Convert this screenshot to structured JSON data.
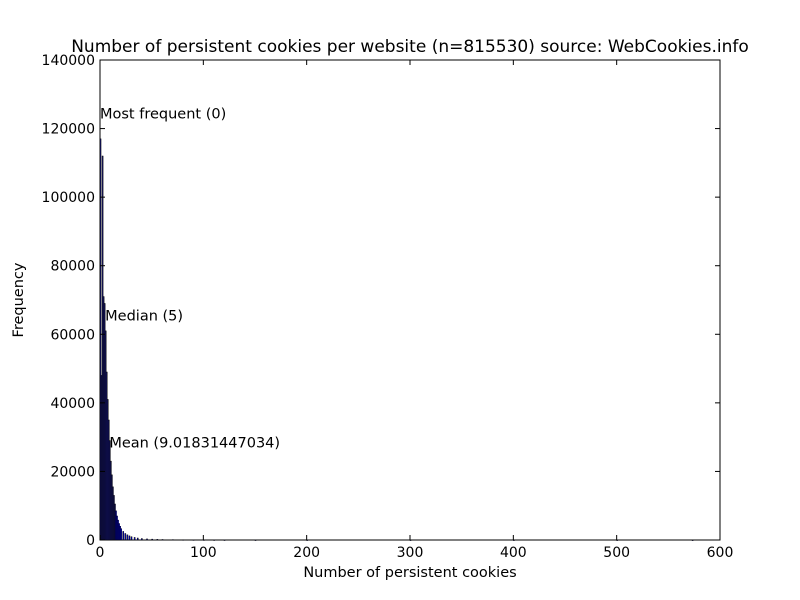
{
  "chart_data": {
    "type": "bar",
    "title": "Number of persistent cookies per website (n=815530) source: WebCookies.info",
    "xlabel": "Number of persistent cookies",
    "ylabel": "Frequency",
    "xlim": [
      0,
      600
    ],
    "ylim": [
      0,
      140000
    ],
    "xticks": [
      "0",
      "100",
      "200",
      "300",
      "400",
      "500",
      "600"
    ],
    "yticks": [
      "0",
      "20000",
      "40000",
      "60000",
      "80000",
      "100000",
      "120000",
      "140000"
    ],
    "grid": false,
    "bin_width": 1,
    "bins": {
      "x": [
        0,
        1,
        2,
        3,
        4,
        5,
        6,
        7,
        8,
        9,
        10,
        11,
        12,
        13,
        14,
        15,
        16,
        17,
        18,
        19,
        20,
        22,
        24,
        26,
        28,
        30,
        33,
        36,
        40,
        45,
        50,
        55,
        60,
        70,
        80,
        90,
        100,
        110,
        120,
        150,
        200,
        300,
        400,
        500,
        573
      ],
      "values": [
        117000,
        48000,
        112000,
        71000,
        69000,
        61000,
        49000,
        41000,
        35000,
        29000,
        23000,
        19000,
        15500,
        13000,
        10500,
        8500,
        7000,
        5800,
        4800,
        4000,
        3300,
        2500,
        1900,
        1500,
        1200,
        950,
        750,
        580,
        430,
        320,
        250,
        190,
        150,
        110,
        80,
        60,
        45,
        35,
        25,
        15,
        10,
        6,
        4,
        3,
        2
      ]
    },
    "markers": [
      {
        "label": "Most frequent (0)",
        "x": 0,
        "y": 123000
      },
      {
        "label": "Median (5)",
        "x": 5,
        "y": 64000
      },
      {
        "label": "Mean (9.01831447034)",
        "x": 9.01831447034,
        "y": 27000
      }
    ]
  }
}
